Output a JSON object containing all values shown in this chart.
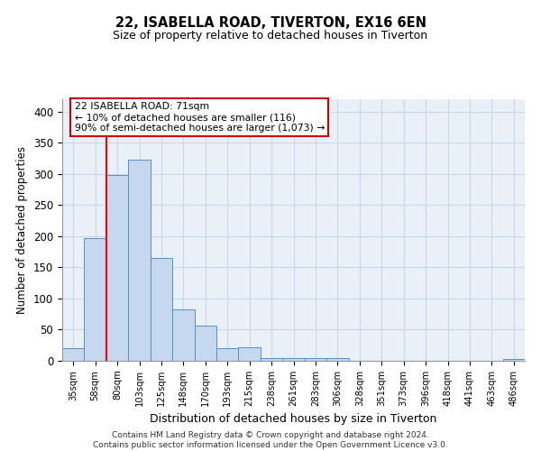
{
  "title": "22, ISABELLA ROAD, TIVERTON, EX16 6EN",
  "subtitle": "Size of property relative to detached houses in Tiverton",
  "xlabel": "Distribution of detached houses by size in Tiverton",
  "ylabel": "Number of detached properties",
  "footnote": "Contains HM Land Registry data © Crown copyright and database right 2024.\nContains public sector information licensed under the Open Government Licence v3.0.",
  "bar_values": [
    20,
    197,
    298,
    323,
    165,
    82,
    57,
    20,
    22,
    5,
    5,
    5,
    5,
    0,
    0,
    0,
    0,
    0,
    0,
    0,
    3
  ],
  "bin_labels": [
    "35sqm",
    "58sqm",
    "80sqm",
    "103sqm",
    "125sqm",
    "148sqm",
    "170sqm",
    "193sqm",
    "215sqm",
    "238sqm",
    "261sqm",
    "283sqm",
    "306sqm",
    "328sqm",
    "351sqm",
    "373sqm",
    "396sqm",
    "418sqm",
    "441sqm",
    "463sqm",
    "486sqm"
  ],
  "bar_color": "#c5d8ef",
  "bar_edge_color": "#5a8fc0",
  "red_line_x": 1.5,
  "annotation_text": "22 ISABELLA ROAD: 71sqm\n← 10% of detached houses are smaller (116)\n90% of semi-detached houses are larger (1,073) →",
  "annotation_box_color": "#ffffff",
  "annotation_box_edge": "#cc0000",
  "ylim": [
    0,
    420
  ],
  "yticks": [
    0,
    50,
    100,
    150,
    200,
    250,
    300,
    350,
    400
  ],
  "grid_color": "#c8d8e8",
  "background_color": "#eaf0f8"
}
